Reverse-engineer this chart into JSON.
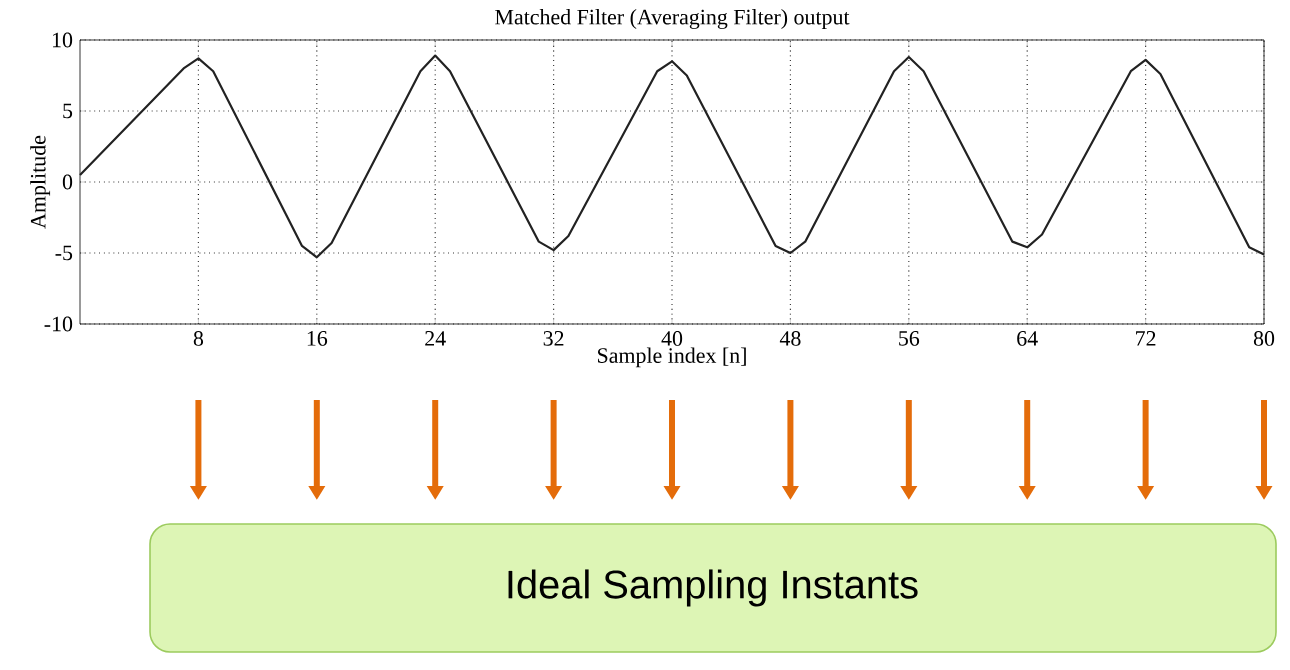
{
  "chart_data": {
    "type": "line",
    "title": "Matched Filter (Averaging Filter) output",
    "xlabel": "Sample index [n]",
    "ylabel": "Amplitude",
    "x": [
      0,
      7,
      8,
      9,
      15,
      16,
      17,
      23,
      24,
      25,
      31,
      32,
      33,
      39,
      40,
      41,
      47,
      48,
      49,
      55,
      56,
      57,
      63,
      64,
      65,
      71,
      72,
      73,
      79,
      80
    ],
    "series": [
      {
        "color": "#222222",
        "values": [
          0.5,
          8.0,
          8.7,
          7.8,
          -4.5,
          -5.3,
          -4.3,
          7.8,
          8.9,
          7.8,
          -4.2,
          -4.8,
          -3.8,
          7.8,
          8.5,
          7.5,
          -4.5,
          -5.0,
          -4.2,
          7.8,
          8.8,
          7.8,
          -4.2,
          -4.6,
          -3.7,
          7.8,
          8.6,
          7.6,
          -4.6,
          -5.1
        ]
      }
    ],
    "xlim": [
      0,
      80
    ],
    "ylim": [
      -10,
      10
    ],
    "xticks": [
      8,
      16,
      24,
      32,
      40,
      48,
      56,
      64,
      72,
      80
    ],
    "yticks": [
      -10,
      -5,
      0,
      5,
      10
    ],
    "grid": true,
    "annotations": [
      "Ideal Sampling Instants"
    ]
  }
}
